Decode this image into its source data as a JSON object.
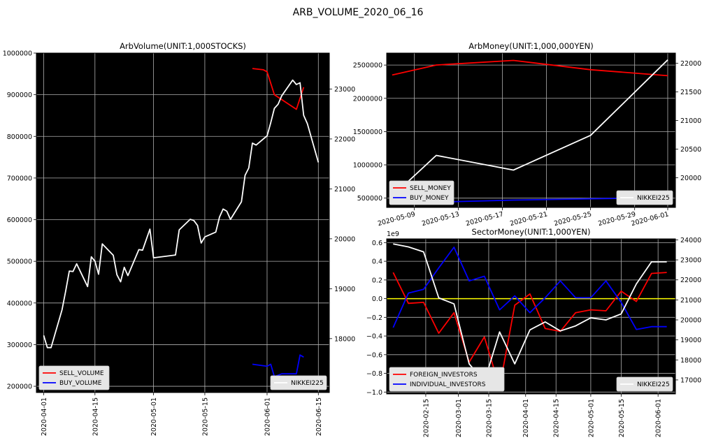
{
  "suptitle": "ARB_VOLUME_2020_06_16",
  "chart_data": [
    {
      "type": "line",
      "title": "ArbVolume(UNIT:1,000STOCKS)",
      "x_ticks": [
        "2020-04-01",
        "2020-04-15",
        "2020-05-01",
        "2020-05-15",
        "2020-06-01",
        "2020-06-15"
      ],
      "x_range": [
        "2020-03-30",
        "2020-06-18"
      ],
      "y_left": {
        "range": [
          185000,
          1000000
        ],
        "ticks": [
          "200000",
          "300000",
          "400000",
          "500000",
          "600000",
          "700000",
          "800000",
          "900000",
          "1000000"
        ]
      },
      "y_right": {
        "range": [
          16920,
          23720
        ],
        "ticks": [
          "18000",
          "19000",
          "20000",
          "21000",
          "22000",
          "23000"
        ]
      },
      "grid": true,
      "background": "#000000",
      "legend_left": {
        "position": "lower-left",
        "entries": [
          "SELL_VOLUME",
          "BUY_VOLUME"
        ]
      },
      "legend_right": {
        "position": "lower-right",
        "entries": [
          "NIKKEI225"
        ]
      },
      "series": [
        {
          "name": "SELL_VOLUME",
          "axis": "left",
          "color": "#ff0000",
          "x": [
            "2020-05-28",
            "2020-05-31",
            "2020-06-01",
            "2020-06-03",
            "2020-06-09",
            "2020-06-11"
          ],
          "values": [
            963000,
            960000,
            955000,
            900000,
            865000,
            918000
          ]
        },
        {
          "name": "BUY_VOLUME",
          "axis": "left",
          "color": "#0000ff",
          "x": [
            "2020-05-28",
            "2020-06-01",
            "2020-06-02",
            "2020-06-03",
            "2020-06-05",
            "2020-06-08",
            "2020-06-09",
            "2020-06-10",
            "2020-06-11"
          ],
          "values": [
            253000,
            248000,
            253000,
            223000,
            230000,
            230000,
            230000,
            275000,
            270000
          ]
        },
        {
          "name": "NIKKEI225",
          "axis": "right",
          "color": "#ffffff",
          "x": [
            "2020-04-01",
            "2020-04-02",
            "2020-04-03",
            "2020-04-06",
            "2020-04-07",
            "2020-04-08",
            "2020-04-09",
            "2020-04-10",
            "2020-04-13",
            "2020-04-14",
            "2020-04-15",
            "2020-04-16",
            "2020-04-17",
            "2020-04-20",
            "2020-04-21",
            "2020-04-22",
            "2020-04-23",
            "2020-04-24",
            "2020-04-27",
            "2020-04-28",
            "2020-04-30",
            "2020-05-01",
            "2020-05-07",
            "2020-05-08",
            "2020-05-11",
            "2020-05-12",
            "2020-05-13",
            "2020-05-14",
            "2020-05-15",
            "2020-05-18",
            "2020-05-19",
            "2020-05-20",
            "2020-05-21",
            "2020-05-22",
            "2020-05-25",
            "2020-05-26",
            "2020-05-27",
            "2020-05-28",
            "2020-05-29",
            "2020-06-01",
            "2020-06-02",
            "2020-06-03",
            "2020-06-04",
            "2020-06-05",
            "2020-06-08",
            "2020-06-09",
            "2020-06-10",
            "2020-06-11",
            "2020-06-12",
            "2020-06-15"
          ],
          "values": [
            18065,
            17819,
            17820,
            18576,
            18950,
            19353,
            19345,
            19498,
            19043,
            19638,
            19550,
            19290,
            19897,
            19669,
            19281,
            19137,
            19429,
            19262,
            19783,
            19771,
            20193,
            19619,
            19675,
            20179,
            20390,
            20366,
            20267,
            19914,
            20037,
            20134,
            20433,
            20595,
            20552,
            20388,
            20741,
            21271,
            21419,
            21916,
            21877,
            22062,
            22325,
            22613,
            22695,
            22864,
            23178,
            23091,
            23125,
            22473,
            22305,
            21530
          ]
        }
      ]
    },
    {
      "type": "line",
      "title": "ArbMoney(UNIT:1,000,000YEN)",
      "x_ticks": [
        "2020-05-09",
        "2020-05-13",
        "2020-05-17",
        "2020-05-21",
        "2020-05-25",
        "2020-05-29",
        "2020-06-01"
      ],
      "x_range": [
        "2020-05-06.5",
        "2020-06-01.7"
      ],
      "y_left": {
        "range": [
          360000,
          2680000
        ],
        "ticks": [
          "500000",
          "1000000",
          "1500000",
          "2000000",
          "2500000"
        ]
      },
      "y_right": {
        "range": [
          19480,
          22180
        ],
        "ticks": [
          "20000",
          "20500",
          "21000",
          "21500",
          "22000"
        ]
      },
      "grid": true,
      "background": "#000000",
      "legend_left": {
        "position": "lower-left",
        "entries": [
          "SELL_MONEY",
          "BUY_MONEY"
        ]
      },
      "legend_right": {
        "position": "lower-right",
        "entries": [
          "NIKKEI225"
        ]
      },
      "series": [
        {
          "name": "SELL_MONEY",
          "axis": "left",
          "color": "#ff0000",
          "x": [
            "2020-05-07",
            "2020-05-11",
            "2020-05-18",
            "2020-05-25",
            "2020-06-01"
          ],
          "values": [
            2350000,
            2500000,
            2570000,
            2430000,
            2340000
          ]
        },
        {
          "name": "BUY_MONEY",
          "axis": "left",
          "color": "#0000ff",
          "x": [
            "2020-05-07",
            "2020-05-11",
            "2020-05-18",
            "2020-05-25",
            "2020-06-01"
          ],
          "values": [
            420000,
            440000,
            470000,
            490000,
            505000
          ]
        },
        {
          "name": "NIKKEI225",
          "axis": "right",
          "color": "#ffffff",
          "x": [
            "2020-05-07",
            "2020-05-11",
            "2020-05-18",
            "2020-05-25",
            "2020-06-01"
          ],
          "values": [
            19675,
            20390,
            20134,
            20741,
            22062
          ]
        }
      ]
    },
    {
      "type": "line",
      "title": "SectorMoney(UNIT:1,000YEN)",
      "offset_label": "1e9",
      "x_ticks": [
        "2020-02-15",
        "2020-03-01",
        "2020-03-15",
        "2020-04-01",
        "2020-04-15",
        "2020-05-01",
        "2020-05-15",
        "2020-06-01"
      ],
      "x_range": [
        "2020-01-28",
        "2020-06-09"
      ],
      "y_left": {
        "range": [
          -1.02,
          0.64
        ],
        "ticks": [
          "−1.0",
          "−0.8",
          "−0.6",
          "−0.4",
          "−0.2",
          "0.0",
          "0.2",
          "0.4",
          "0.6"
        ]
      },
      "y_right": {
        "range": [
          16300,
          24050
        ],
        "ticks": [
          "17000",
          "18000",
          "19000",
          "20000",
          "21000",
          "22000",
          "23000",
          "24000"
        ]
      },
      "grid": true,
      "background": "#000000",
      "zero_line_color": "#ffff00",
      "legend_left": {
        "position": "lower-left",
        "entries": [
          "FOREIGN_INVESTORS",
          "INDIVIDUAL_INVESTORS"
        ]
      },
      "legend_right": {
        "position": "lower-right",
        "entries": [
          "NIKKEI225"
        ]
      },
      "series": [
        {
          "name": "FOREIGN_INVESTORS",
          "axis": "left",
          "color": "#ff0000",
          "x": [
            "2020-01-31",
            "2020-02-07",
            "2020-02-14",
            "2020-02-21",
            "2020-02-28",
            "2020-03-06",
            "2020-03-13",
            "2020-03-20",
            "2020-03-27",
            "2020-04-03",
            "2020-04-10",
            "2020-04-17",
            "2020-04-24",
            "2020-05-01",
            "2020-05-08",
            "2020-05-15",
            "2020-05-22",
            "2020-05-29",
            "2020-06-05"
          ],
          "values": [
            0.28,
            -0.05,
            -0.04,
            -0.37,
            -0.15,
            -0.68,
            -0.41,
            -0.95,
            -0.07,
            0.05,
            -0.32,
            -0.35,
            -0.15,
            -0.12,
            -0.13,
            0.08,
            -0.03,
            0.27,
            0.28
          ]
        },
        {
          "name": "INDIVIDUAL_INVESTORS",
          "axis": "left",
          "color": "#0000ff",
          "x": [
            "2020-01-31",
            "2020-02-07",
            "2020-02-14",
            "2020-02-21",
            "2020-02-28",
            "2020-03-06",
            "2020-03-13",
            "2020-03-20",
            "2020-03-27",
            "2020-04-03",
            "2020-04-10",
            "2020-04-17",
            "2020-04-24",
            "2020-05-01",
            "2020-05-08",
            "2020-05-15",
            "2020-05-22",
            "2020-05-29",
            "2020-06-05"
          ],
          "values": [
            -0.31,
            0.06,
            0.1,
            0.33,
            0.55,
            0.19,
            0.24,
            -0.12,
            0.03,
            -0.15,
            0.01,
            0.19,
            0.01,
            0.01,
            0.19,
            -0.04,
            -0.33,
            -0.3,
            -0.3
          ]
        },
        {
          "name": "NIKKEI225",
          "axis": "right",
          "color": "#ffffff",
          "x": [
            "2020-01-31",
            "2020-02-07",
            "2020-02-14",
            "2020-02-21",
            "2020-02-28",
            "2020-03-06",
            "2020-03-13",
            "2020-03-20",
            "2020-03-27",
            "2020-04-03",
            "2020-04-10",
            "2020-04-17",
            "2020-04-24",
            "2020-05-01",
            "2020-05-08",
            "2020-05-15",
            "2020-05-22",
            "2020-05-29",
            "2020-06-05"
          ],
          "values": [
            23800,
            23650,
            23400,
            21100,
            20800,
            17800,
            16900,
            19400,
            17800,
            19500,
            19900,
            19450,
            19700,
            20100,
            20000,
            20300,
            21800,
            22900,
            22900
          ]
        }
      ]
    }
  ]
}
